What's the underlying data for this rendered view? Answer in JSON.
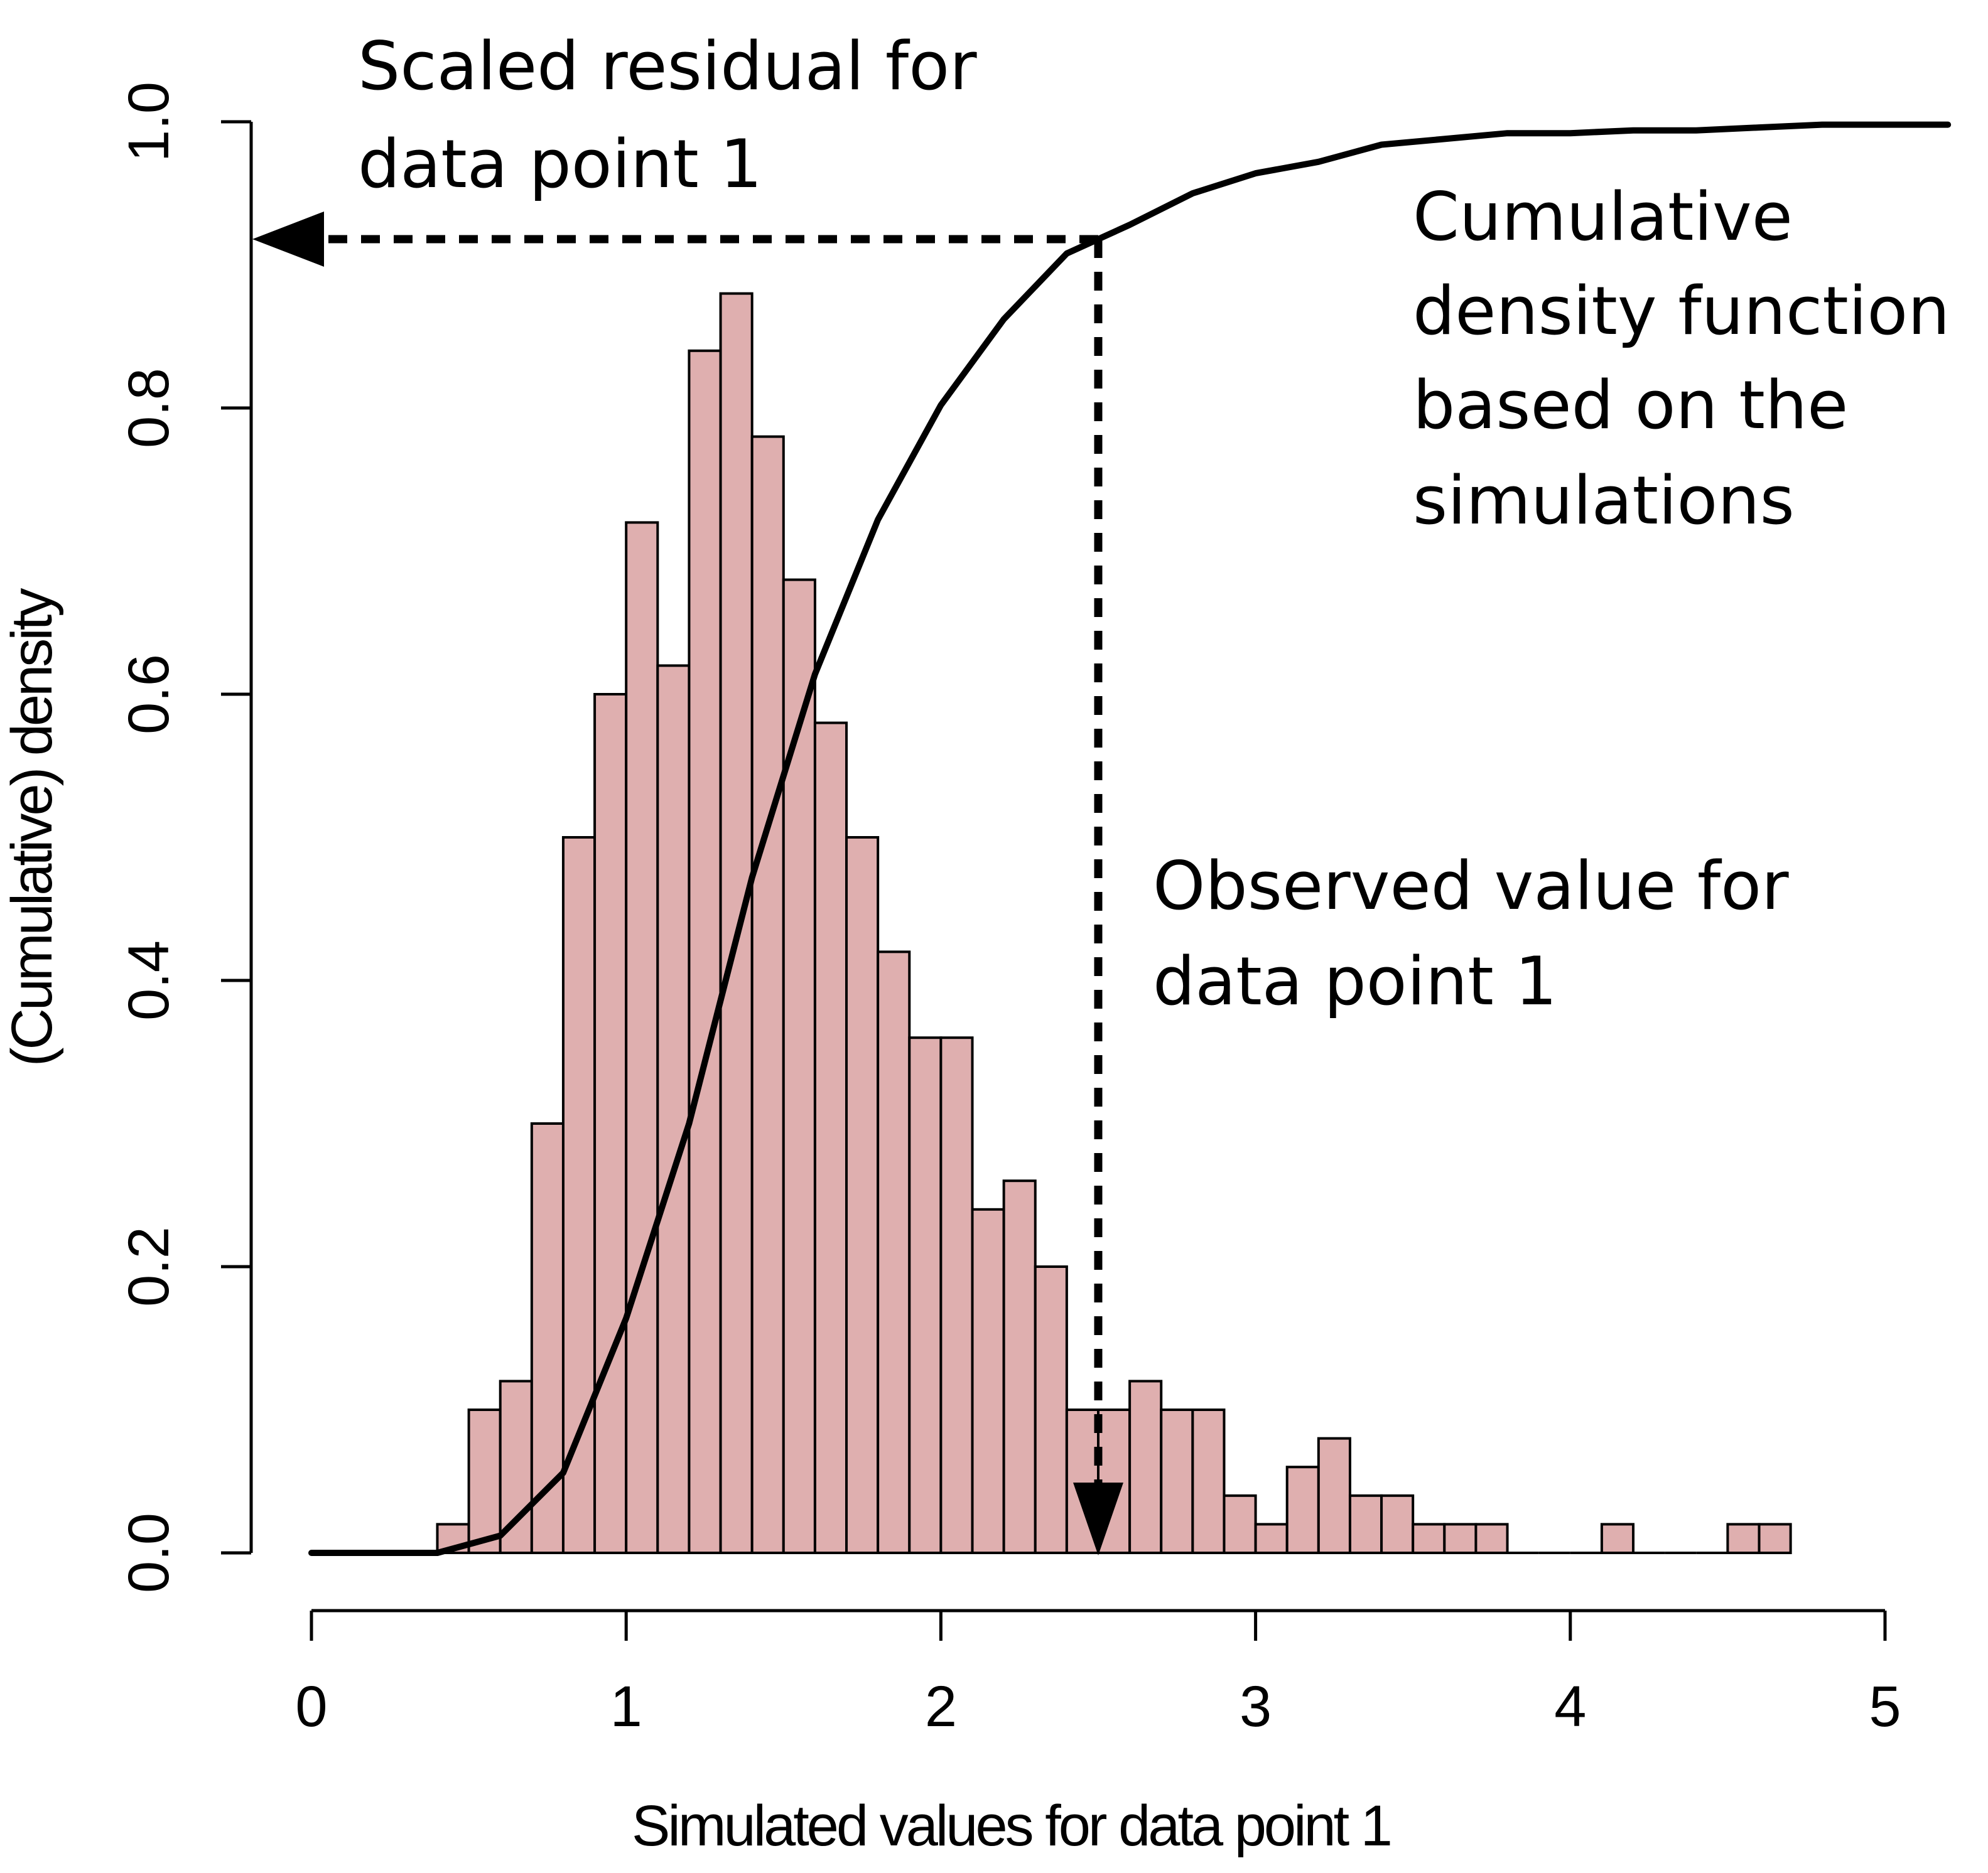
{
  "chart_data": {
    "type": "bar",
    "xlabel": "Simulated values for data point 1",
    "ylabel": "(Cumulative) density",
    "xlim": [
      0,
      5
    ],
    "ylim": [
      0,
      1
    ],
    "x_ticks": [
      "0",
      "1",
      "2",
      "3",
      "4",
      "5"
    ],
    "y_ticks": [
      "0.0",
      "0.2",
      "0.4",
      "0.6",
      "0.8",
      "1.0"
    ],
    "grid": false,
    "histogram": {
      "bin_width": 0.1,
      "bin_starts": [
        0.4,
        0.5,
        0.6,
        0.7,
        0.8,
        0.9,
        1.0,
        1.1,
        1.2,
        1.3,
        1.4,
        1.5,
        1.6,
        1.7,
        1.8,
        1.9,
        2.0,
        2.1,
        2.2,
        2.3,
        2.4,
        2.5,
        2.6,
        2.7,
        2.8,
        2.9,
        3.0,
        3.1,
        3.2,
        3.3,
        3.4,
        3.5,
        3.6,
        3.7,
        3.8,
        3.9,
        4.0,
        4.1,
        4.2,
        4.3,
        4.4,
        4.5,
        4.6
      ],
      "densities": [
        0.02,
        0.1,
        0.12,
        0.3,
        0.5,
        0.6,
        0.72,
        0.62,
        0.84,
        0.88,
        0.78,
        0.68,
        0.58,
        0.5,
        0.42,
        0.36,
        0.36,
        0.24,
        0.26,
        0.2,
        0.1,
        0.1,
        0.12,
        0.1,
        0.1,
        0.04,
        0.02,
        0.06,
        0.08,
        0.04,
        0.04,
        0.02,
        0.02,
        0.02,
        0,
        0,
        0,
        0.02,
        0,
        0,
        0,
        0.02,
        0.02
      ],
      "color": "#dfafaf"
    },
    "series": [
      {
        "type": "line",
        "x": [
          0,
          0.2,
          0.4,
          0.6,
          0.8,
          1.0,
          1.2,
          1.4,
          1.6,
          1.8,
          2.0,
          2.2,
          2.4,
          2.6,
          2.8,
          3.0,
          3.2,
          3.4,
          3.6,
          3.8,
          4.0,
          4.2,
          4.4,
          4.6,
          4.8,
          5.0,
          5.2
        ],
        "y": [
          0,
          0,
          0,
          0.012,
          0.056,
          0.164,
          0.3,
          0.472,
          0.614,
          0.722,
          0.802,
          0.862,
          0.908,
          0.928,
          0.95,
          0.964,
          0.972,
          0.984,
          0.988,
          0.992,
          0.992,
          0.994,
          0.994,
          0.996,
          0.998,
          0.998,
          0.998
        ],
        "color": "#000000"
      }
    ],
    "observed_value": 2.5,
    "scaled_residual": 0.918,
    "annotations": {
      "residual": [
        "Scaled residual for",
        "data point 1"
      ],
      "cdf": [
        "Cumulative",
        "density function",
        "based on the",
        "simulations"
      ],
      "observed": [
        "Observed value for",
        "data point 1"
      ]
    }
  }
}
